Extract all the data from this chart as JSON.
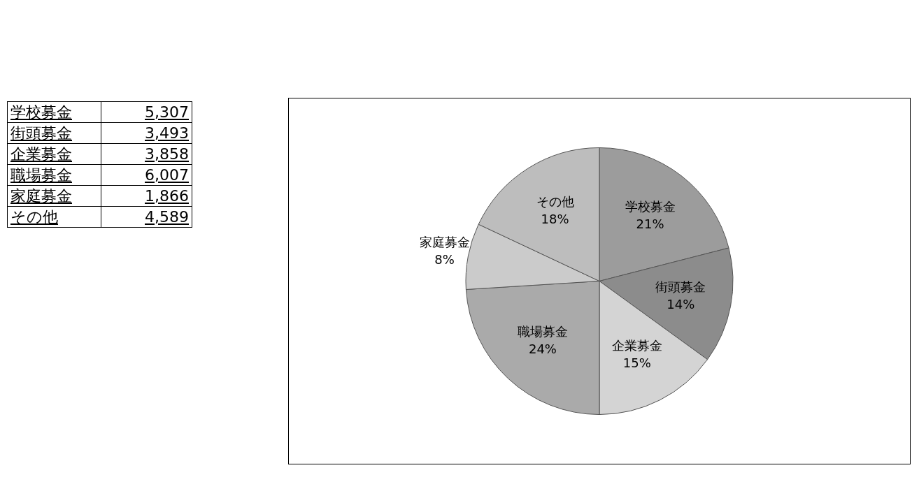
{
  "chart_data": {
    "type": "pie",
    "categories": [
      "学校募金",
      "街頭募金",
      "企業募金",
      "職場募金",
      "家庭募金",
      "その他"
    ],
    "values": [
      21,
      14,
      15,
      24,
      8,
      18
    ],
    "colors": [
      "#9c9c9c",
      "#8c8c8c",
      "#d4d4d4",
      "#aaaaaa",
      "#cbcbcb",
      "#bdbdbd"
    ],
    "value_labels": [
      "21%",
      "14%",
      "15%",
      "24%",
      "8%",
      "18%"
    ],
    "annotations": [
      "5,307",
      "3,493",
      "3,858",
      "6,007",
      "1,866",
      "4,589"
    ],
    "legend": false
  }
}
